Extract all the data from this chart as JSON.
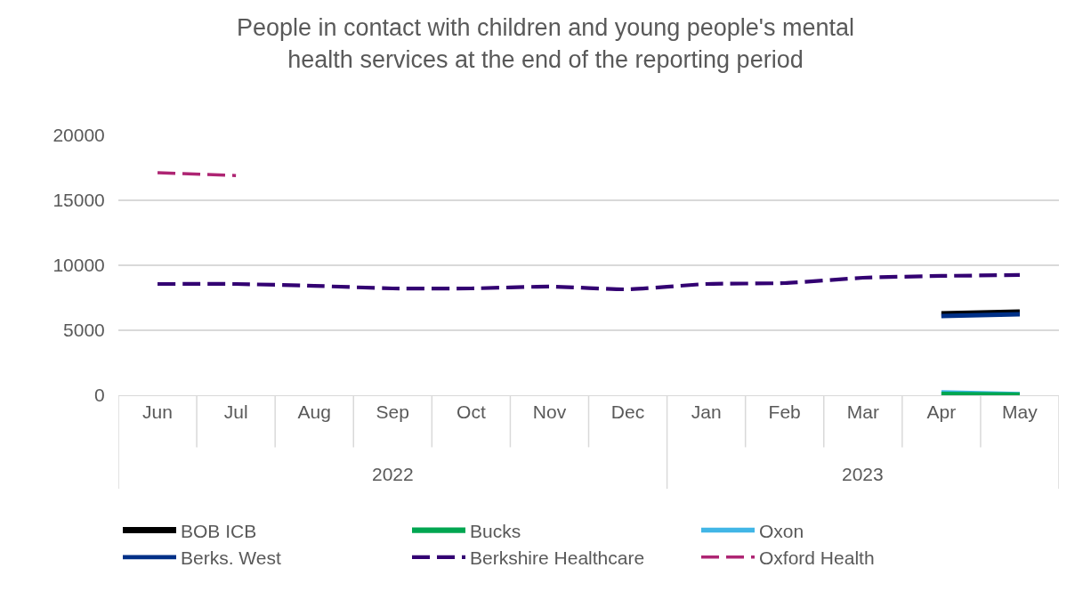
{
  "chart_data": {
    "type": "line",
    "title": "People in contact with children and young people's mental health services at the end of the reporting period",
    "categories": [
      "Jun",
      "Jul",
      "Aug",
      "Sep",
      "Oct",
      "Nov",
      "Dec",
      "Jan",
      "Feb",
      "Mar",
      "Apr",
      "May"
    ],
    "series": [
      {
        "name": "BOB ICB",
        "color": "#000000",
        "values": [
          null,
          null,
          null,
          null,
          null,
          null,
          null,
          null,
          null,
          null,
          6230,
          6370
        ]
      },
      {
        "name": "Bucks",
        "color": "#00a651",
        "values": [
          null,
          null,
          null,
          null,
          null,
          null,
          null,
          null,
          null,
          null,
          60,
          10
        ]
      },
      {
        "name": "Oxon",
        "color": "#41b6e6",
        "values": [
          null,
          null,
          null,
          null,
          null,
          null,
          null,
          null,
          null,
          null,
          200,
          70
        ]
      },
      {
        "name": "Berks. West",
        "color": "#003087",
        "values": [
          null,
          null,
          null,
          null,
          null,
          null,
          null,
          null,
          null,
          null,
          6100,
          6230
        ]
      },
      {
        "name": "Berkshire Healthcare",
        "color": "#330072",
        "line_style": "dashed",
        "values": [
          8560,
          8560,
          8420,
          8220,
          8220,
          8360,
          8150,
          8560,
          8630,
          9040,
          9180,
          9250
        ]
      },
      {
        "name": "Oxford Health",
        "color": "#ae2573",
        "line_style": "dashed",
        "values": [
          17120,
          16900,
          null,
          null,
          null,
          null,
          null,
          null,
          null,
          null,
          null,
          null
        ]
      }
    ],
    "annotations": [
      "2022",
      "2023"
    ],
    "ylim": [
      0,
      20000
    ],
    "yticks": [
      0,
      5000,
      10000,
      15000,
      20000
    ],
    "grid": "y",
    "legend": "bottom",
    "line_style": "solid",
    "marker": "none"
  }
}
